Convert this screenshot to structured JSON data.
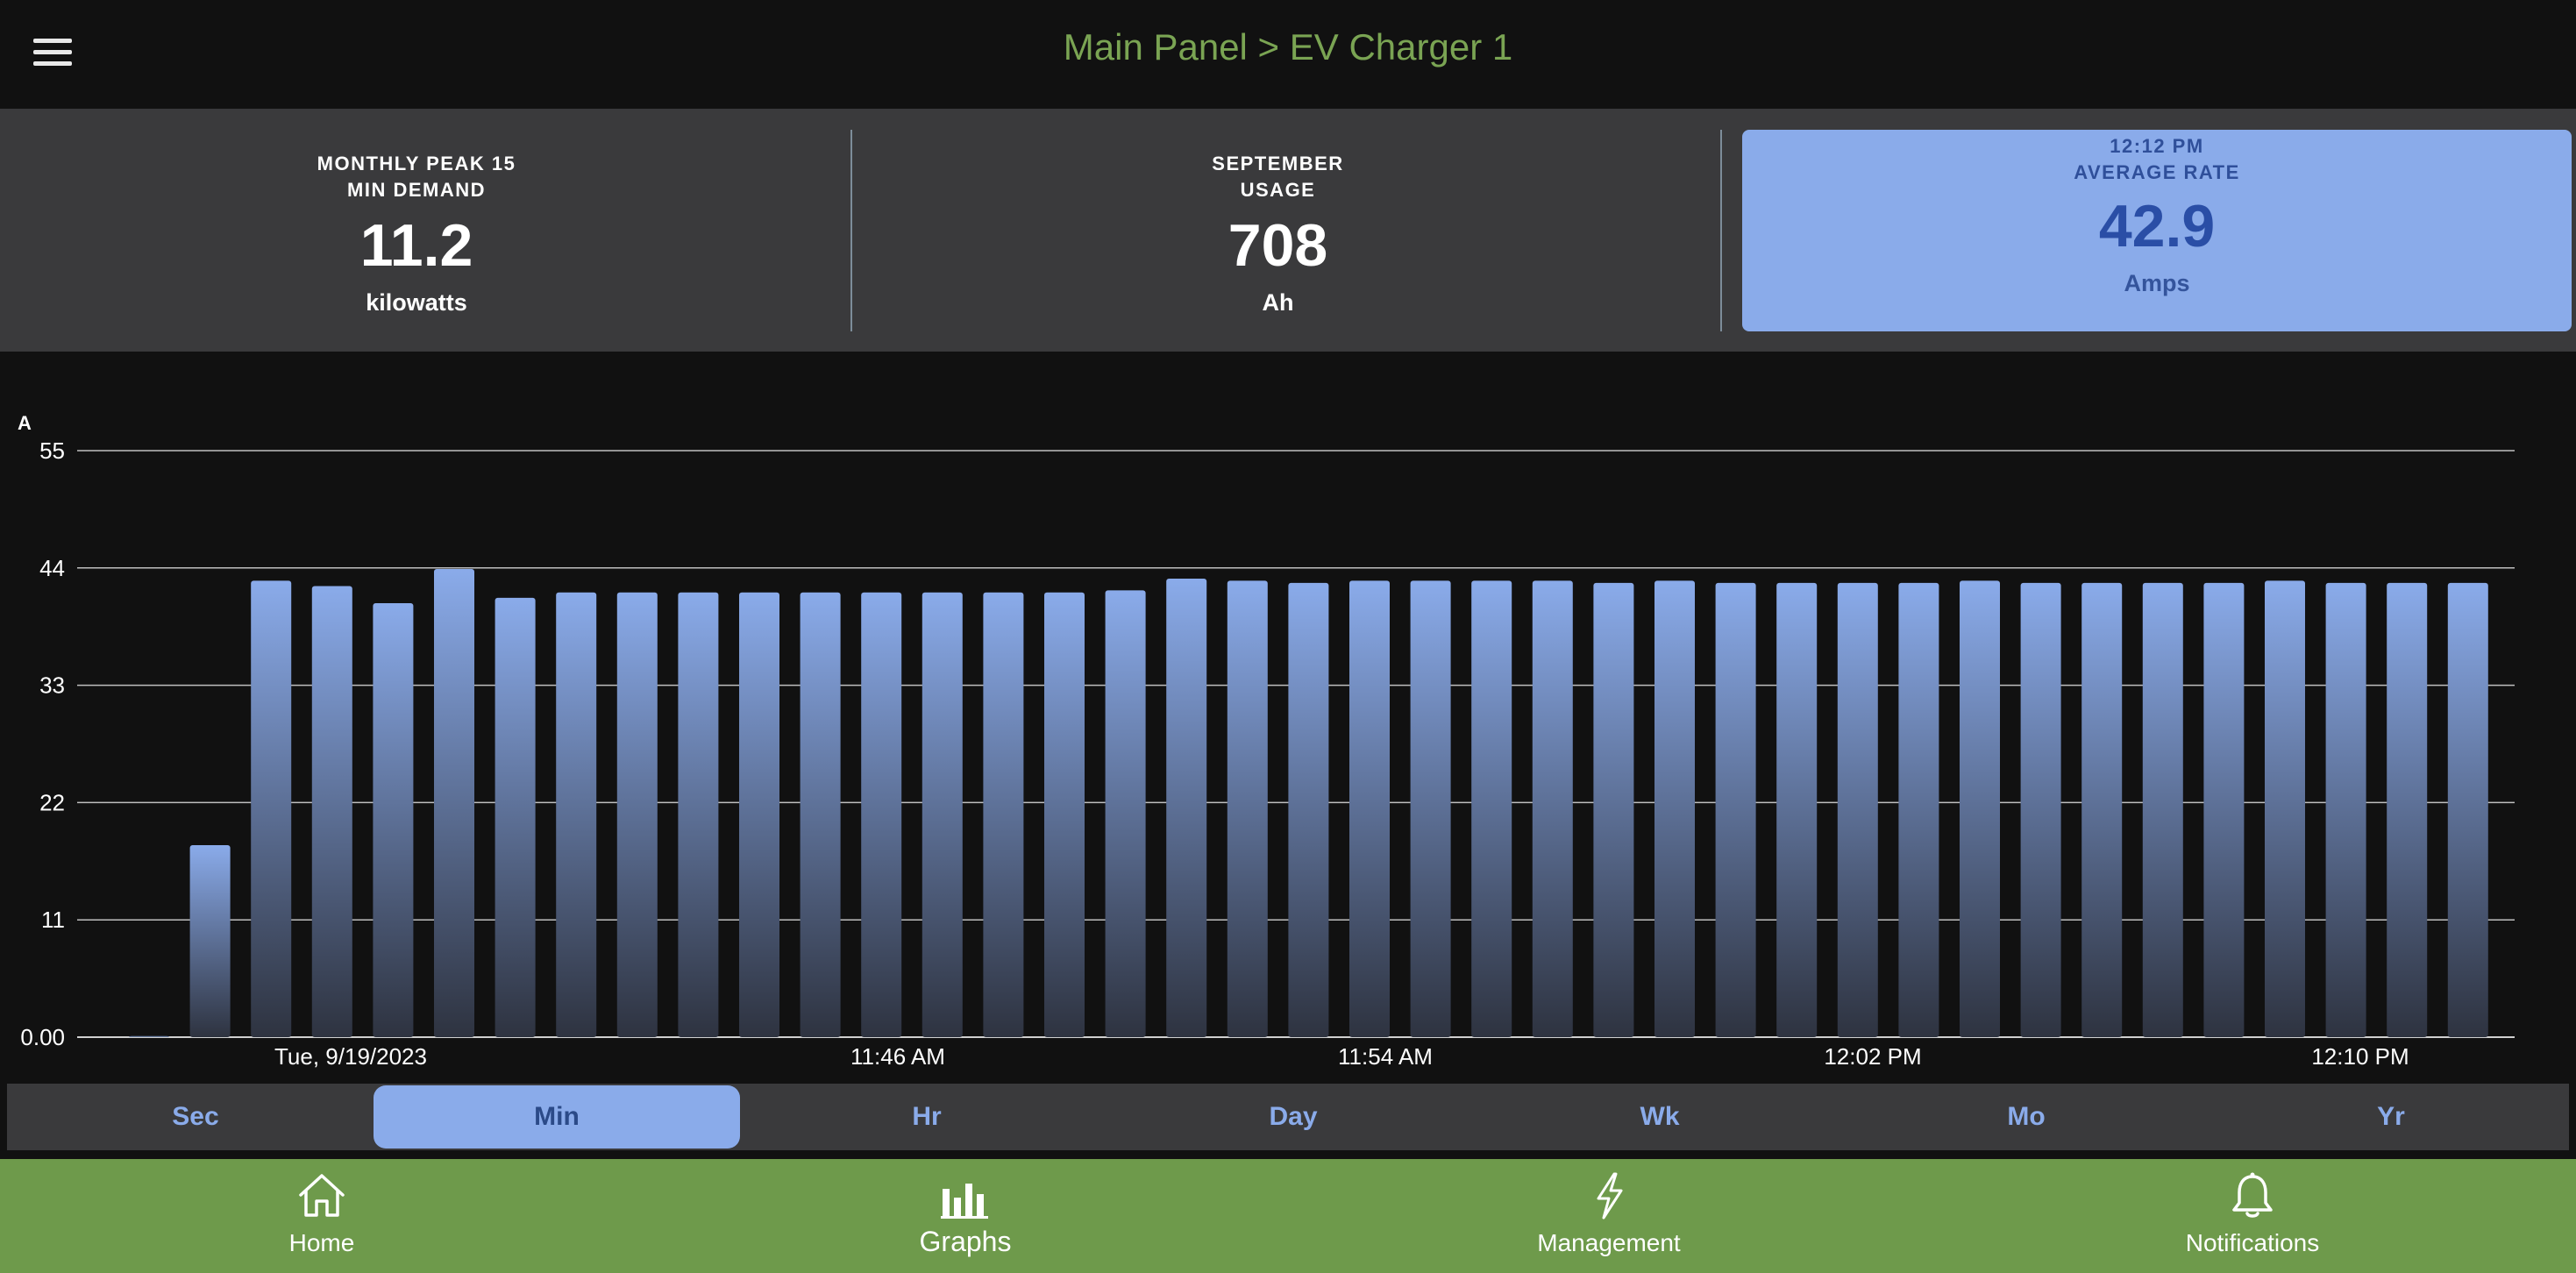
{
  "header": {
    "title": "Main Panel > EV Charger 1"
  },
  "stats": [
    {
      "label_line1": "MONTHLY PEAK 15",
      "label_line2": "MIN DEMAND",
      "value": "11.2",
      "unit": "kilowatts"
    },
    {
      "label_line1": "SEPTEMBER",
      "label_line2": "USAGE",
      "value": "708",
      "unit": "Ah"
    },
    {
      "label_line1": "12:12 PM",
      "label_line2": "AVERAGE RATE",
      "value": "42.9",
      "unit": "Amps",
      "active": true
    }
  ],
  "chart_data": {
    "type": "bar",
    "ylabel": "A",
    "ylim": [
      0,
      55
    ],
    "y_ticks": [
      "0.00",
      "11",
      "22",
      "33",
      "44",
      "55"
    ],
    "x_ticks": [
      "Tue, 9/19/2023",
      "11:46 AM",
      "11:54 AM",
      "12:02 PM",
      "12:10 PM"
    ],
    "values": [
      0.1,
      18.0,
      42.8,
      42.3,
      40.7,
      43.9,
      41.2,
      41.7,
      41.7,
      41.7,
      41.7,
      41.7,
      41.7,
      41.7,
      41.7,
      41.7,
      41.9,
      43.0,
      42.8,
      42.6,
      42.8,
      42.8,
      42.8,
      42.8,
      42.6,
      42.8,
      42.6,
      42.6,
      42.6,
      42.6,
      42.8,
      42.6,
      42.6,
      42.6,
      42.6,
      42.8,
      42.6,
      42.6,
      42.6
    ],
    "bar_color_top": "#8aabea",
    "bar_color_bottom": "#2e3340",
    "grid": true
  },
  "ranges": [
    "Sec",
    "Min",
    "Hr",
    "Day",
    "Wk",
    "Mo",
    "Yr"
  ],
  "active_range": "Min",
  "nav": [
    {
      "label": "Home",
      "icon": "home-icon"
    },
    {
      "label": "Graphs",
      "icon": "graphs-icon"
    },
    {
      "label": "Management",
      "icon": "lightning-icon"
    },
    {
      "label": "Notifications",
      "icon": "bell-icon"
    }
  ],
  "colors": {
    "accent": "#8aabea",
    "brand_green": "#6e9a4b",
    "title_green": "#7aa453"
  }
}
